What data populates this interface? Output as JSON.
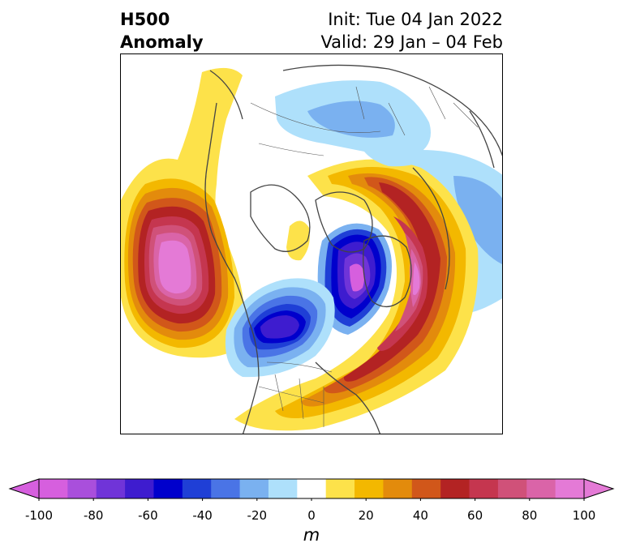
{
  "title": {
    "left_line1": "H500",
    "left_line2": "Anomaly",
    "right_line1": "Init: Tue 04 Jan 2022",
    "right_line2": "Valid: 29 Jan – 04 Feb"
  },
  "colorbar": {
    "label": "m",
    "ticks": [
      "-100",
      "-80",
      "-60",
      "-40",
      "-20",
      "0",
      "20",
      "40",
      "60",
      "80",
      "100"
    ],
    "extend": "both",
    "colors": [
      "#d65fde",
      "#a94fdc",
      "#7034d8",
      "#3e1ccf",
      "#0000cc",
      "#1f3fd6",
      "#4a74e6",
      "#7ab1f0",
      "#aee0fb",
      "#ffffff",
      "#fde24a",
      "#f3b800",
      "#e38b0c",
      "#d1571a",
      "#b32323",
      "#c5364f",
      "#d05179",
      "#da64a8",
      "#e47ad6"
    ]
  },
  "map": {
    "projection": "north-polar-stereographic",
    "anomalies": [
      {
        "name": "Northeast Pacific ridge",
        "sign": "positive",
        "peak_m": 100
      },
      {
        "name": "Central Canada trough",
        "sign": "negative",
        "peak_m": -70
      },
      {
        "name": "Canadian Arctic Archipelago low",
        "sign": "negative",
        "peak_m": -100
      },
      {
        "name": "North Atlantic / Greenland ridge",
        "sign": "positive",
        "peak_m": 100
      },
      {
        "name": "Northern Eurasia trough",
        "sign": "negative",
        "peak_m": -40
      },
      {
        "name": "Eastern Siberia negative band",
        "sign": "negative",
        "peak_m": -30
      }
    ]
  }
}
